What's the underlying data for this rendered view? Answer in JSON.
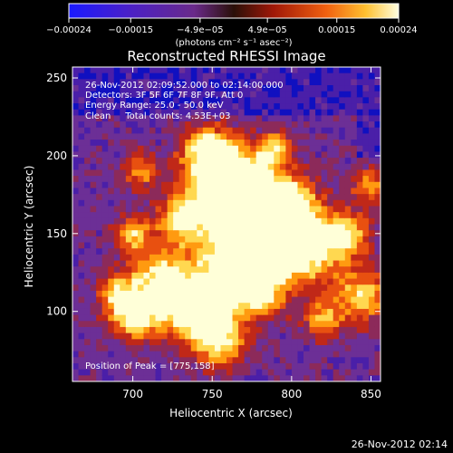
{
  "colorbar": {
    "tick_labels": [
      "−0.00024",
      "−0.00015",
      "−4.9e−05",
      "4.9e−05",
      "0.00015",
      "0.00024"
    ],
    "tick_values": [
      -0.00024,
      -0.00015,
      -4.9e-05,
      4.9e-05,
      0.00015,
      0.00024
    ],
    "range": [
      -0.00024,
      0.00024
    ],
    "units_label": "(photons cm⁻² s⁻¹ asec⁻²)"
  },
  "chart_data": {
    "type": "heatmap",
    "title": "Reconstructed RHESSI Image",
    "xlabel": "Heliocentric X (arcsec)",
    "ylabel": "Heliocentric Y (arcsec)",
    "xlim": [
      662,
      856
    ],
    "ylim": [
      55,
      257
    ],
    "xticks": [
      700,
      750,
      800,
      850
    ],
    "yticks": [
      100,
      150,
      200,
      250
    ],
    "peak": {
      "x": 775,
      "y": 158
    },
    "annotations": [
      "26-Nov-2012 02:09:52.000 to 02:14:00.000",
      "Detectors: 3F 5F 6F 7F 8F 9F, Att 0",
      "Energy Range: 25.0 - 50.0 keV",
      "Clean     Total counts: 4.53E+03"
    ],
    "peak_label": "Position of Peak = [775,158]",
    "colormap": [
      "#1010c0",
      "#4a1fa8",
      "#6c2f96",
      "#8c2a5a",
      "#c02818",
      "#e85010",
      "#ff9a10",
      "#ffd850",
      "#ffffd8"
    ]
  },
  "footer_timestamp": "26-Nov-2012 02:14"
}
